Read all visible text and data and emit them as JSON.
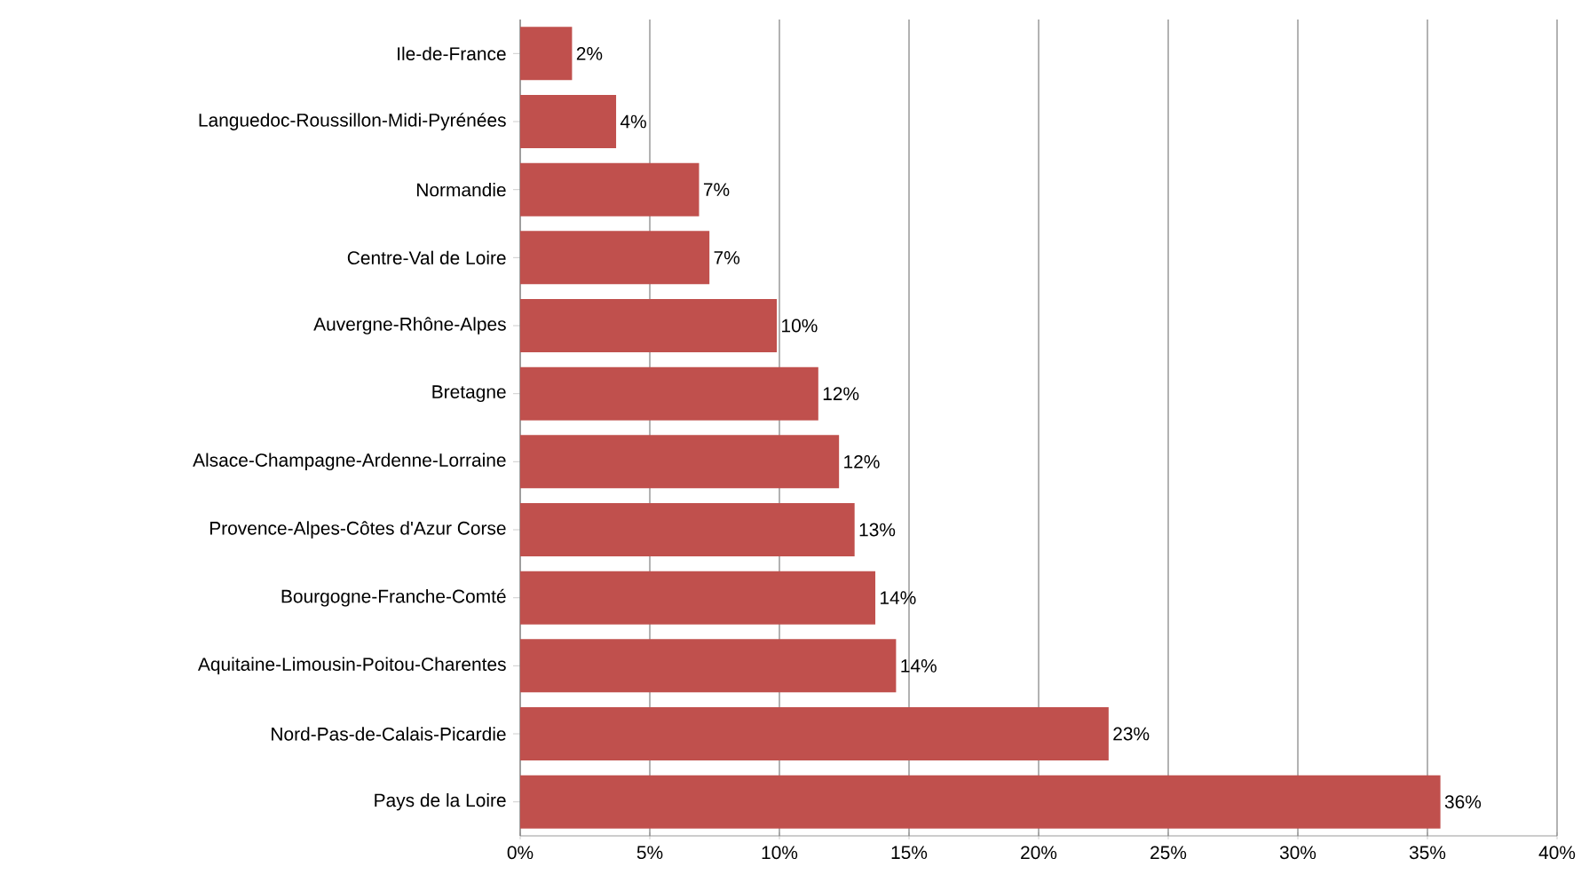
{
  "chart_data": {
    "type": "bar",
    "orientation": "horizontal",
    "categories": [
      "Ile-de-France",
      "Languedoc-Roussillon-Midi-Pyrénées",
      "Normandie",
      "Centre-Val de Loire",
      "Auvergne-Rhône-Alpes",
      "Bretagne",
      "Alsace-Champagne-Ardenne-Lorraine",
      "Provence-Alpes-Côtes d'Azur Corse",
      "Bourgogne-Franche-Comté",
      "Aquitaine-Limousin-Poitou-Charentes",
      "Nord-Pas-de-Calais-Picardie",
      "Pays de la Loire"
    ],
    "values": [
      2.0,
      3.7,
      6.9,
      7.3,
      9.9,
      11.5,
      12.3,
      12.9,
      13.7,
      14.5,
      22.7,
      35.5
    ],
    "value_labels": [
      "2%",
      "4%",
      "7%",
      "7%",
      "10%",
      "12%",
      "12%",
      "13%",
      "14%",
      "14%",
      "23%",
      "36%"
    ],
    "color": "#c0504d",
    "xlim": [
      0,
      40
    ],
    "xticks": [
      {
        "value": 0,
        "label": "0%"
      },
      {
        "value": 5,
        "label": "5%"
      },
      {
        "value": 10,
        "label": "10%"
      },
      {
        "value": 15,
        "label": "15%"
      },
      {
        "value": 20,
        "label": "20%"
      },
      {
        "value": 25,
        "label": "25%"
      },
      {
        "value": 30,
        "label": "30%"
      },
      {
        "value": 35,
        "label": "35%"
      },
      {
        "value": 40,
        "label": "40%"
      }
    ],
    "grid": "x"
  }
}
